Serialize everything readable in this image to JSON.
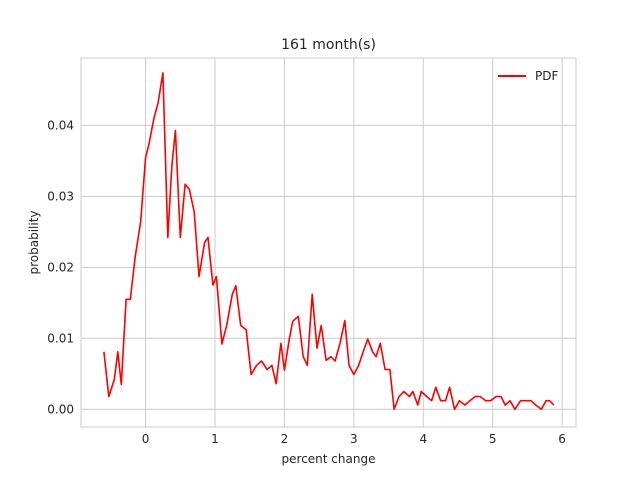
{
  "chart_data": {
    "type": "line",
    "title": "161 month(s)",
    "xlabel": "percent change",
    "ylabel": "probability",
    "xlim": [
      -0.93,
      6.2
    ],
    "ylim": [
      -0.0025,
      0.0495
    ],
    "xticks": [
      0,
      1,
      2,
      3,
      4,
      5,
      6
    ],
    "xtick_labels": [
      "0",
      "1",
      "2",
      "3",
      "4",
      "5",
      "6"
    ],
    "yticks": [
      0.0,
      0.01,
      0.02,
      0.03,
      0.04
    ],
    "ytick_labels": [
      "0.00",
      "0.01",
      "0.02",
      "0.03",
      "0.04"
    ],
    "grid": true,
    "legend_position": "top-right",
    "series": [
      {
        "name": "PDF",
        "color": "#ff0000",
        "x": [
          -0.6,
          -0.53,
          -0.45,
          -0.4,
          -0.35,
          -0.28,
          -0.22,
          -0.15,
          -0.07,
          0.0,
          0.05,
          0.12,
          0.18,
          0.25,
          0.32,
          0.38,
          0.43,
          0.5,
          0.57,
          0.63,
          0.7,
          0.77,
          0.85,
          0.9,
          0.97,
          1.02,
          1.1,
          1.17,
          1.25,
          1.3,
          1.37,
          1.45,
          1.52,
          1.6,
          1.67,
          1.75,
          1.82,
          1.88,
          1.95,
          2.0,
          2.07,
          2.12,
          2.2,
          2.27,
          2.33,
          2.4,
          2.47,
          2.53,
          2.6,
          2.67,
          2.73,
          2.8,
          2.87,
          2.93,
          3.0,
          3.07,
          3.13,
          3.2,
          3.27,
          3.32,
          3.38,
          3.45,
          3.52,
          3.58,
          3.65,
          3.72,
          3.8,
          3.85,
          3.92,
          3.97,
          4.05,
          4.12,
          4.18,
          4.25,
          4.32,
          4.38,
          4.45,
          4.52,
          4.6,
          4.67,
          4.75,
          4.82,
          4.9,
          4.97,
          5.05,
          5.12,
          5.18,
          5.25,
          5.32,
          5.4,
          5.47,
          5.55,
          5.62,
          5.7,
          5.77,
          5.82,
          5.88
        ],
        "y": [
          0.0081,
          0.0018,
          0.0042,
          0.0081,
          0.0035,
          0.0155,
          0.0155,
          0.0215,
          0.0265,
          0.0355,
          0.0374,
          0.041,
          0.0432,
          0.0474,
          0.0242,
          0.0344,
          0.0393,
          0.0242,
          0.0317,
          0.031,
          0.0278,
          0.0187,
          0.0235,
          0.0242,
          0.0175,
          0.0187,
          0.0092,
          0.0119,
          0.0162,
          0.0174,
          0.0118,
          0.0112,
          0.0049,
          0.0062,
          0.0068,
          0.0056,
          0.0062,
          0.0036,
          0.0093,
          0.0055,
          0.0099,
          0.0124,
          0.0131,
          0.0074,
          0.0062,
          0.0162,
          0.0086,
          0.0118,
          0.0069,
          0.0074,
          0.0068,
          0.0093,
          0.0125,
          0.0062,
          0.0049,
          0.0062,
          0.008,
          0.0099,
          0.0081,
          0.0074,
          0.0093,
          0.0056,
          0.0056,
          0.0,
          0.0018,
          0.0025,
          0.0018,
          0.0025,
          0.0006,
          0.0025,
          0.0018,
          0.0012,
          0.0031,
          0.0012,
          0.0012,
          0.0031,
          0.0,
          0.0012,
          0.0006,
          0.0012,
          0.0018,
          0.0018,
          0.0012,
          0.0012,
          0.0018,
          0.0018,
          0.0006,
          0.0012,
          0.0,
          0.0012,
          0.0012,
          0.0012,
          0.0006,
          0.0,
          0.0012,
          0.0012,
          0.0006
        ]
      }
    ]
  }
}
